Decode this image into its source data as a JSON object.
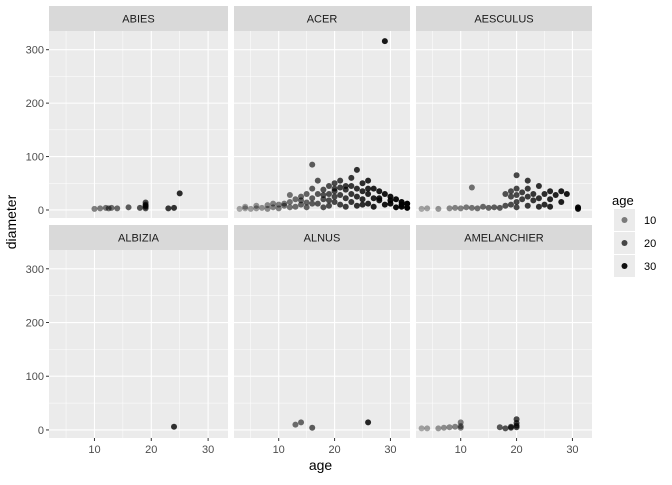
{
  "chart_data": {
    "type": "scatter",
    "facet_layout": "2x3",
    "title": "",
    "xlabel": "age",
    "ylabel": "diameter",
    "xlim": [
      2,
      33.5
    ],
    "ylim": [
      -15,
      335
    ],
    "x_ticks": [
      10,
      20,
      30
    ],
    "y_ticks": [
      0,
      100,
      200,
      300
    ],
    "grid": true,
    "colors": {
      "panel_bg": "#EBEBEB",
      "strip_bg": "#D9D9D9",
      "grid": "#FFFFFF",
      "point": "#000000",
      "axis_text": "#4D4D4D",
      "title_text": "#000000"
    },
    "legend": {
      "title": "age",
      "placement": "right",
      "entries": [
        {
          "label": "10",
          "value": 10
        },
        {
          "label": "20",
          "value": 20
        },
        {
          "label": "30",
          "value": 30
        }
      ]
    },
    "alpha_scale": {
      "min_age": 2,
      "max_age": 33,
      "min_alpha": 0.3,
      "max_alpha": 1.0
    },
    "panels": [
      {
        "name": "ABIES",
        "points": [
          [
            10,
            2
          ],
          [
            11,
            3
          ],
          [
            12,
            4
          ],
          [
            12.5,
            3
          ],
          [
            13,
            4
          ],
          [
            14,
            3
          ],
          [
            16,
            5
          ],
          [
            18,
            4
          ],
          [
            19,
            6
          ],
          [
            19,
            10
          ],
          [
            19,
            14
          ],
          [
            19,
            3
          ],
          [
            19,
            8
          ],
          [
            23,
            3
          ],
          [
            24,
            4
          ],
          [
            25,
            31
          ]
        ]
      },
      {
        "name": "ACER",
        "points": [
          [
            3,
            2
          ],
          [
            4,
            3
          ],
          [
            5,
            2
          ],
          [
            6,
            3
          ],
          [
            7,
            4
          ],
          [
            8,
            2
          ],
          [
            9,
            5
          ],
          [
            10,
            3
          ],
          [
            10,
            10
          ],
          [
            11,
            8
          ],
          [
            11,
            12
          ],
          [
            12,
            28
          ],
          [
            12,
            5
          ],
          [
            13,
            20
          ],
          [
            13,
            6
          ],
          [
            14,
            25
          ],
          [
            14,
            10
          ],
          [
            15,
            30
          ],
          [
            15,
            14
          ],
          [
            15,
            5
          ],
          [
            16,
            22
          ],
          [
            16,
            40
          ],
          [
            16,
            85
          ],
          [
            17,
            55
          ],
          [
            17,
            30
          ],
          [
            17,
            12
          ],
          [
            18,
            38
          ],
          [
            18,
            20
          ],
          [
            18,
            5
          ],
          [
            19,
            45
          ],
          [
            19,
            30
          ],
          [
            19,
            18
          ],
          [
            19,
            8
          ],
          [
            20,
            50
          ],
          [
            20,
            35
          ],
          [
            20,
            25
          ],
          [
            20,
            15
          ],
          [
            21,
            42
          ],
          [
            21,
            28
          ],
          [
            21,
            10
          ],
          [
            22,
            38
          ],
          [
            22,
            22
          ],
          [
            22,
            6
          ],
          [
            23,
            60
          ],
          [
            23,
            45
          ],
          [
            23,
            30
          ],
          [
            23,
            15
          ],
          [
            24,
            75
          ],
          [
            24,
            40
          ],
          [
            24,
            25
          ],
          [
            24,
            8
          ],
          [
            25,
            50
          ],
          [
            25,
            35
          ],
          [
            25,
            20
          ],
          [
            26,
            55
          ],
          [
            26,
            30
          ],
          [
            26,
            12
          ],
          [
            27,
            40
          ],
          [
            27,
            22
          ],
          [
            27,
            6
          ],
          [
            28,
            35
          ],
          [
            28,
            18
          ],
          [
            29,
            316
          ],
          [
            29,
            30
          ],
          [
            29,
            10
          ],
          [
            30,
            25
          ],
          [
            30,
            12
          ],
          [
            31,
            20
          ],
          [
            31,
            5
          ],
          [
            32,
            15
          ],
          [
            32,
            6
          ],
          [
            33,
            12
          ],
          [
            33,
            4
          ],
          [
            4,
            6
          ],
          [
            6,
            8
          ],
          [
            8,
            9
          ],
          [
            9,
            12
          ],
          [
            12,
            15
          ],
          [
            14,
            18
          ],
          [
            16,
            12
          ],
          [
            18,
            28
          ],
          [
            20,
            40
          ],
          [
            21,
            55
          ],
          [
            22,
            45
          ],
          [
            25,
            10
          ],
          [
            26,
            40
          ],
          [
            28,
            22
          ],
          [
            30,
            18
          ],
          [
            32,
            10
          ]
        ]
      },
      {
        "name": "AESCULUS",
        "points": [
          [
            3,
            2
          ],
          [
            4,
            3
          ],
          [
            6,
            2
          ],
          [
            8,
            3
          ],
          [
            9,
            4
          ],
          [
            10,
            3
          ],
          [
            11,
            5
          ],
          [
            12,
            42
          ],
          [
            12,
            4
          ],
          [
            13,
            3
          ],
          [
            14,
            6
          ],
          [
            15,
            4
          ],
          [
            16,
            5
          ],
          [
            17,
            4
          ],
          [
            18,
            8
          ],
          [
            18,
            30
          ],
          [
            19,
            10
          ],
          [
            19,
            25
          ],
          [
            19,
            35
          ],
          [
            20,
            15
          ],
          [
            20,
            28
          ],
          [
            20,
            40
          ],
          [
            20,
            65
          ],
          [
            21,
            20
          ],
          [
            21,
            33
          ],
          [
            22,
            25
          ],
          [
            22,
            40
          ],
          [
            22,
            55
          ],
          [
            23,
            18
          ],
          [
            23,
            30
          ],
          [
            24,
            45
          ],
          [
            24,
            22
          ],
          [
            25,
            30
          ],
          [
            25,
            10
          ],
          [
            26,
            35
          ],
          [
            26,
            20
          ],
          [
            27,
            28
          ],
          [
            28,
            35
          ],
          [
            28,
            15
          ],
          [
            29,
            30
          ],
          [
            31,
            5
          ],
          [
            31,
            2
          ],
          [
            20,
            5
          ],
          [
            22,
            8
          ],
          [
            24,
            6
          ],
          [
            26,
            6
          ]
        ]
      },
      {
        "name": "ALBIZIA",
        "points": [
          [
            24,
            6
          ]
        ]
      },
      {
        "name": "ALNUS",
        "points": [
          [
            13,
            10
          ],
          [
            14,
            14
          ],
          [
            16,
            4
          ],
          [
            26,
            14
          ]
        ]
      },
      {
        "name": "AMELANCHIER",
        "points": [
          [
            3,
            3
          ],
          [
            4,
            3
          ],
          [
            6,
            3
          ],
          [
            7,
            4
          ],
          [
            8,
            5
          ],
          [
            9,
            6
          ],
          [
            10,
            7
          ],
          [
            10,
            14
          ],
          [
            10,
            4
          ],
          [
            17,
            5
          ],
          [
            18,
            3
          ],
          [
            19,
            6
          ],
          [
            19,
            4
          ],
          [
            20,
            8
          ],
          [
            20,
            13
          ],
          [
            20,
            20
          ],
          [
            20,
            5
          ]
        ]
      }
    ]
  }
}
